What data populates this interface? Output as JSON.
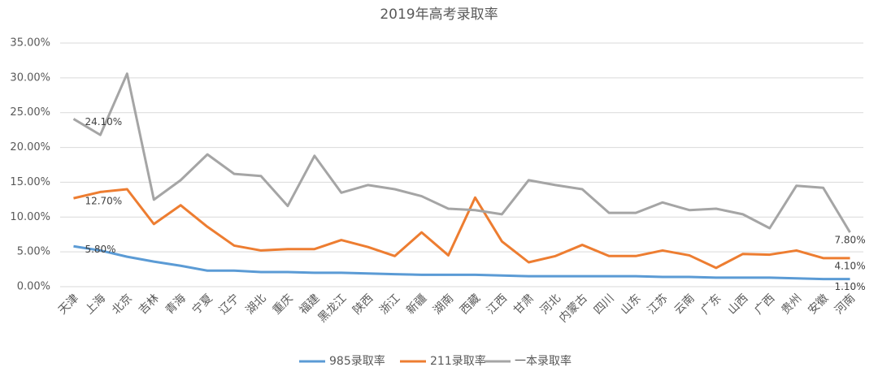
{
  "chart_data": {
    "type": "line",
    "title": "2019年高考录取率",
    "categories": [
      "天津",
      "上海",
      "北京",
      "吉林",
      "青海",
      "宁夏",
      "辽宁",
      "湖北",
      "重庆",
      "福建",
      "黑龙江",
      "陕西",
      "浙江",
      "新疆",
      "湖南",
      "西藏",
      "江西",
      "甘肃",
      "河北",
      "内蒙古",
      "四川",
      "山东",
      "江苏",
      "云南",
      "广东",
      "山西",
      "广西",
      "贵州",
      "安徽",
      "河南"
    ],
    "series": [
      {
        "name": "985录取率",
        "color": "#5b9bd5",
        "values": [
          5.8,
          5.2,
          4.3,
          3.6,
          3.0,
          2.3,
          2.3,
          2.1,
          2.1,
          2.0,
          2.0,
          1.9,
          1.8,
          1.7,
          1.7,
          1.7,
          1.6,
          1.5,
          1.5,
          1.5,
          1.5,
          1.5,
          1.4,
          1.4,
          1.3,
          1.3,
          1.3,
          1.2,
          1.1,
          1.1
        ],
        "value_labels": [
          "5.80%",
          null,
          null,
          null,
          null,
          null,
          null,
          null,
          null,
          null,
          null,
          null,
          null,
          null,
          null,
          null,
          null,
          null,
          null,
          null,
          null,
          null,
          null,
          null,
          null,
          null,
          null,
          null,
          null,
          "1.10%"
        ]
      },
      {
        "name": "211录取率",
        "color": "#ed7d31",
        "values": [
          12.7,
          13.6,
          14.0,
          9.0,
          11.7,
          8.6,
          5.9,
          5.2,
          5.4,
          5.4,
          6.7,
          5.7,
          4.4,
          7.8,
          4.5,
          12.8,
          6.5,
          3.5,
          4.4,
          6.0,
          4.4,
          4.4,
          5.2,
          4.5,
          2.7,
          4.7,
          4.6,
          5.2,
          4.1,
          4.1
        ],
        "value_labels": [
          "12.70%",
          null,
          null,
          null,
          null,
          null,
          null,
          null,
          null,
          null,
          null,
          null,
          null,
          null,
          null,
          null,
          null,
          null,
          null,
          null,
          null,
          null,
          null,
          null,
          null,
          null,
          null,
          null,
          null,
          "4.10%"
        ]
      },
      {
        "name": "一本录取率",
        "color": "#a5a5a5",
        "values": [
          24.1,
          21.8,
          30.6,
          12.5,
          15.3,
          19.0,
          16.2,
          15.9,
          11.6,
          18.8,
          13.5,
          14.6,
          14.0,
          13.0,
          11.2,
          11.0,
          10.4,
          15.3,
          14.6,
          14.0,
          10.6,
          10.6,
          12.1,
          11.0,
          11.2,
          10.4,
          8.4,
          14.5,
          14.2,
          7.8
        ],
        "value_labels": [
          "24.10%",
          null,
          null,
          null,
          null,
          null,
          null,
          null,
          null,
          null,
          null,
          null,
          null,
          null,
          null,
          null,
          null,
          null,
          null,
          null,
          null,
          null,
          null,
          null,
          null,
          null,
          null,
          null,
          null,
          "7.80%"
        ]
      }
    ],
    "ylim": [
      0,
      35
    ],
    "yticks": [
      {
        "value": 0,
        "label": "0.00%"
      },
      {
        "value": 5,
        "label": "5.00%"
      },
      {
        "value": 10,
        "label": "10.00%"
      },
      {
        "value": 15,
        "label": "15.00%"
      },
      {
        "value": 20,
        "label": "20.00%"
      },
      {
        "value": 25,
        "label": "25.00%"
      },
      {
        "value": 30,
        "label": "30.00%"
      },
      {
        "value": 35,
        "label": "35.00%"
      }
    ],
    "grid": true
  }
}
